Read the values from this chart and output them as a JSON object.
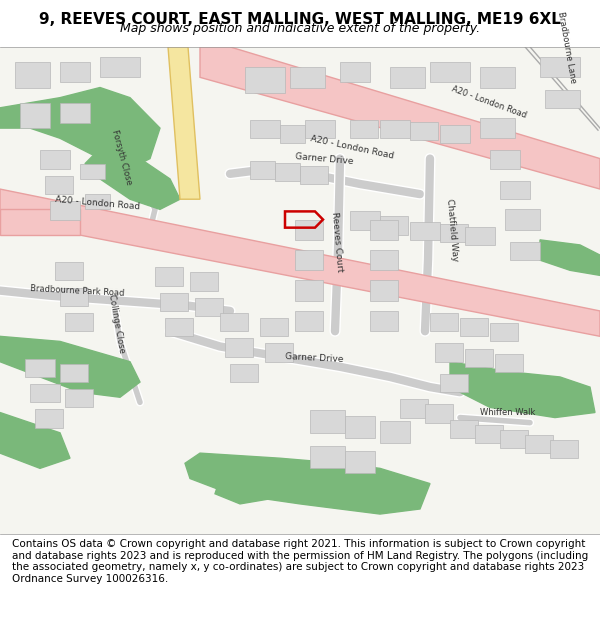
{
  "title": "9, REEVES COURT, EAST MALLING, WEST MALLING, ME19 6XL",
  "subtitle": "Map shows position and indicative extent of the property.",
  "footer": "Contains OS data © Crown copyright and database right 2021. This information is subject to Crown copyright and database rights 2023 and is reproduced with the permission of HM Land Registry. The polygons (including the associated geometry, namely x, y co-ordinates) are subject to Crown copyright and database rights 2023 Ordnance Survey 100026316.",
  "map_bg": "#f5f5f0",
  "road_pink": "#f5c5c5",
  "road_pink_stroke": "#e8a0a0",
  "road_yellow": "#f5e6a0",
  "road_yellow_stroke": "#e0c060",
  "building_fill": "#d8d8d8",
  "building_stroke": "#b8b8b8",
  "green_fill": "#7ab87a",
  "road_line": "#cccccc",
  "red_marker": "#cc0000",
  "title_fontsize": 11,
  "subtitle_fontsize": 9,
  "footer_fontsize": 7.5,
  "label_fontsize": 6.5,
  "label_small_fontsize": 6.0
}
